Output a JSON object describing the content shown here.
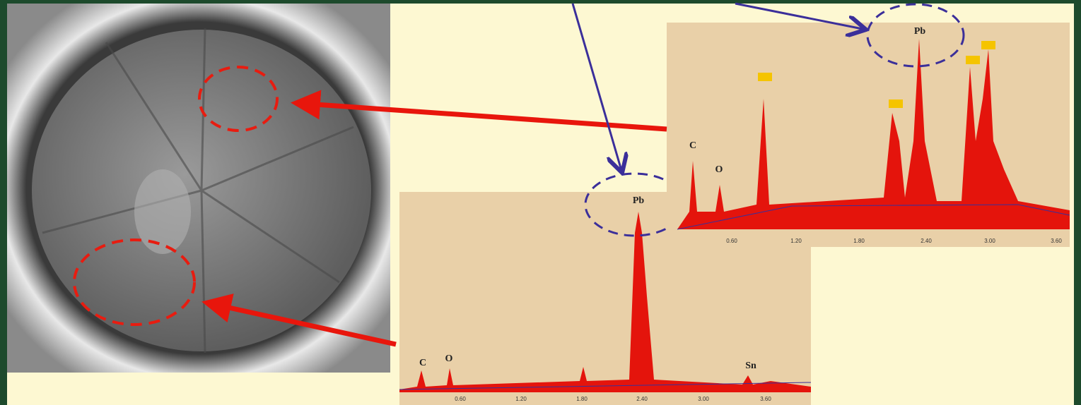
{
  "spectrum_top": {
    "peak_labels": [
      "C",
      "O",
      "Pb"
    ],
    "axis_ticks": [
      "0.60",
      "1.20",
      "1.80",
      "2.40",
      "3.00",
      "3.60"
    ]
  },
  "spectrum_bottom": {
    "peak_labels": [
      "C",
      "O",
      "Pb",
      "Sn"
    ],
    "axis_ticks": [
      "0.60",
      "1.20",
      "1.80",
      "2.40",
      "3.00",
      "3.60"
    ]
  }
}
